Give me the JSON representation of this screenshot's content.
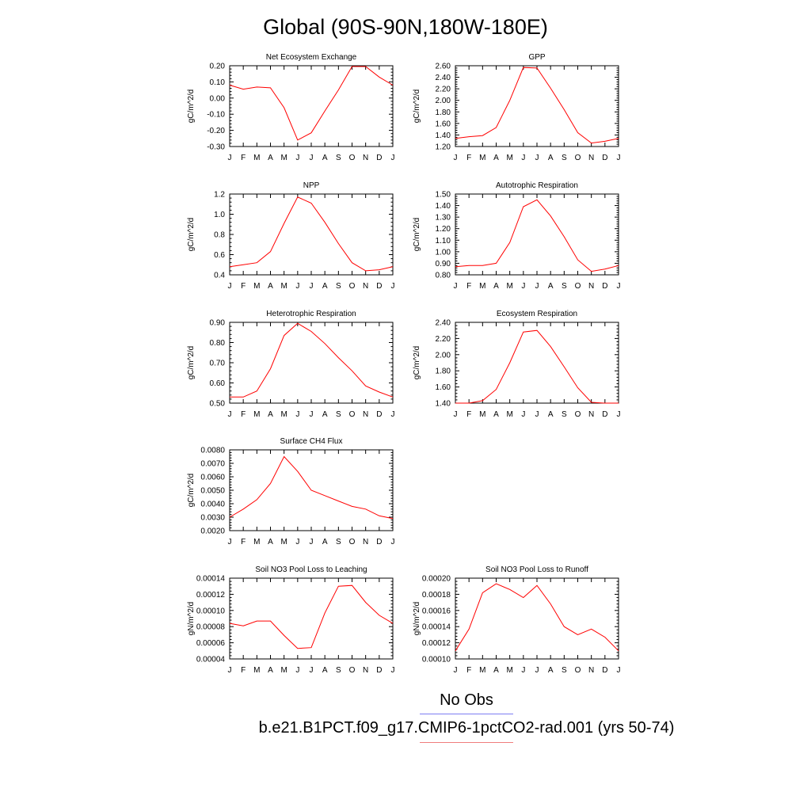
{
  "title": "Global (90S-90N,180W-180E)",
  "legend": {
    "obs_label": "No Obs",
    "case_label": "b.e21.B1PCT.f09_g17.CMIP6-1pctCO2-rad.001 (yrs 50-74)",
    "obs_color": "#7d7df2",
    "case_color": "#f07d7d"
  },
  "line_color": "#ff0000",
  "chart_data": [
    {
      "type": "line",
      "title": "Net Ecosystem Exchange",
      "ylabel": "gC/m^2/d",
      "categories": [
        "J",
        "F",
        "M",
        "A",
        "M",
        "J",
        "J",
        "A",
        "S",
        "O",
        "N",
        "D",
        "J"
      ],
      "values": [
        0.08,
        0.055,
        0.068,
        0.063,
        -0.06,
        -0.26,
        -0.215,
        -0.08,
        0.05,
        0.195,
        0.195,
        0.13,
        0.08
      ],
      "ylim": [
        -0.3,
        0.2
      ],
      "yticks": [
        -0.3,
        -0.2,
        -0.1,
        0.0,
        0.1,
        0.2
      ],
      "ytick_labels": [
        "-0.30",
        "-0.20",
        "-0.10",
        "0.00",
        "0.10",
        "0.20"
      ]
    },
    {
      "type": "line",
      "title": "GPP",
      "ylabel": "gC/m^2/d",
      "categories": [
        "J",
        "F",
        "M",
        "A",
        "M",
        "J",
        "J",
        "A",
        "S",
        "O",
        "N",
        "D",
        "J"
      ],
      "values": [
        1.34,
        1.37,
        1.39,
        1.53,
        2.0,
        2.57,
        2.56,
        2.21,
        1.84,
        1.44,
        1.26,
        1.29,
        1.34
      ],
      "ylim": [
        1.2,
        2.6
      ],
      "yticks": [
        1.2,
        1.4,
        1.6,
        1.8,
        2.0,
        2.2,
        2.4,
        2.6
      ],
      "ytick_labels": [
        "1.20",
        "1.40",
        "1.60",
        "1.80",
        "2.00",
        "2.20",
        "2.40",
        "2.60"
      ]
    },
    {
      "type": "line",
      "title": "NPP",
      "ylabel": "gC/m^2/d",
      "categories": [
        "J",
        "F",
        "M",
        "A",
        "M",
        "J",
        "J",
        "A",
        "S",
        "O",
        "N",
        "D",
        "J"
      ],
      "values": [
        0.48,
        0.5,
        0.52,
        0.63,
        0.91,
        1.17,
        1.11,
        0.92,
        0.71,
        0.52,
        0.44,
        0.45,
        0.48
      ],
      "ylim": [
        0.4,
        1.2
      ],
      "yticks": [
        0.4,
        0.6,
        0.8,
        1.0,
        1.2
      ],
      "ytick_labels": [
        "0.4",
        "0.6",
        "0.8",
        "1.0",
        "1.2"
      ]
    },
    {
      "type": "line",
      "title": "Autotrophic Respiration",
      "ylabel": "gC/m^2/d",
      "categories": [
        "J",
        "F",
        "M",
        "A",
        "M",
        "J",
        "J",
        "A",
        "S",
        "O",
        "N",
        "D",
        "J"
      ],
      "values": [
        0.87,
        0.88,
        0.88,
        0.9,
        1.08,
        1.39,
        1.45,
        1.31,
        1.13,
        0.93,
        0.83,
        0.85,
        0.88
      ],
      "ylim": [
        0.8,
        1.5
      ],
      "yticks": [
        0.8,
        0.9,
        1.0,
        1.1,
        1.2,
        1.3,
        1.4,
        1.5
      ],
      "ytick_labels": [
        "0.80",
        "0.90",
        "1.00",
        "1.10",
        "1.20",
        "1.30",
        "1.40",
        "1.50"
      ]
    },
    {
      "type": "line",
      "title": "Heterotrophic Respiration",
      "ylabel": "gC/m^2/d",
      "categories": [
        "J",
        "F",
        "M",
        "A",
        "M",
        "J",
        "J",
        "A",
        "S",
        "O",
        "N",
        "D",
        "J"
      ],
      "values": [
        0.53,
        0.53,
        0.56,
        0.67,
        0.835,
        0.895,
        0.855,
        0.795,
        0.725,
        0.66,
        0.585,
        0.555,
        0.53
      ],
      "ylim": [
        0.5,
        0.9
      ],
      "yticks": [
        0.5,
        0.6,
        0.7,
        0.8,
        0.9
      ],
      "ytick_labels": [
        "0.50",
        "0.60",
        "0.70",
        "0.80",
        "0.90"
      ]
    },
    {
      "type": "line",
      "title": "Ecosystem Respiration",
      "ylabel": "gC/m^2/d",
      "categories": [
        "J",
        "F",
        "M",
        "A",
        "M",
        "J",
        "J",
        "A",
        "S",
        "O",
        "N",
        "D",
        "J"
      ],
      "values": [
        1.4,
        1.4,
        1.43,
        1.57,
        1.9,
        2.28,
        2.3,
        2.1,
        1.85,
        1.59,
        1.41,
        1.4,
        1.4
      ],
      "ylim": [
        1.4,
        2.4
      ],
      "yticks": [
        1.4,
        1.6,
        1.8,
        2.0,
        2.2,
        2.4
      ],
      "ytick_labels": [
        "1.40",
        "1.60",
        "1.80",
        "2.00",
        "2.20",
        "2.40"
      ]
    },
    {
      "type": "line",
      "title": "Surface CH4 Flux",
      "ylabel": "gC/m^2/d",
      "categories": [
        "J",
        "F",
        "M",
        "A",
        "M",
        "J",
        "J",
        "A",
        "S",
        "O",
        "N",
        "D",
        "J"
      ],
      "values": [
        0.003,
        0.0036,
        0.0043,
        0.0055,
        0.0075,
        0.0064,
        0.005,
        0.0046,
        0.0042,
        0.0038,
        0.0036,
        0.0031,
        0.0029
      ],
      "ylim": [
        0.002,
        0.008
      ],
      "yticks": [
        0.002,
        0.003,
        0.004,
        0.005,
        0.006,
        0.007,
        0.008
      ],
      "ytick_labels": [
        "0.0020",
        "0.0030",
        "0.0040",
        "0.0050",
        "0.0060",
        "0.0070",
        "0.0080"
      ]
    },
    {
      "type": "line",
      "title": "Soil NO3 Pool Loss to Leaching",
      "ylabel": "gN/m^2/d",
      "categories": [
        "J",
        "F",
        "M",
        "A",
        "M",
        "J",
        "J",
        "A",
        "S",
        "O",
        "N",
        "D",
        "J"
      ],
      "values": [
        8.4e-05,
        8.1e-05,
        8.7e-05,
        8.7e-05,
        6.9e-05,
        5.3e-05,
        5.4e-05,
        9.7e-05,
        0.00013,
        0.000131,
        0.00011,
        9.4e-05,
        8.4e-05
      ],
      "ylim": [
        4e-05,
        0.00014
      ],
      "yticks": [
        4e-05,
        6e-05,
        8e-05,
        0.0001,
        0.00012,
        0.00014
      ],
      "ytick_labels": [
        "0.00004",
        "0.00006",
        "0.00008",
        "0.00010",
        "0.00012",
        "0.00014"
      ]
    },
    {
      "type": "line",
      "title": "Soil NO3 Pool Loss to Runoff",
      "ylabel": "gN/m^2/d",
      "categories": [
        "J",
        "F",
        "M",
        "A",
        "M",
        "J",
        "J",
        "A",
        "S",
        "O",
        "N",
        "D",
        "J"
      ],
      "values": [
        0.00011,
        0.000137,
        0.000182,
        0.000193,
        0.000186,
        0.000176,
        0.000191,
        0.000168,
        0.00014,
        0.00013,
        0.000137,
        0.000127,
        0.00011
      ],
      "ylim": [
        0.0001,
        0.0002
      ],
      "yticks": [
        0.0001,
        0.00012,
        0.00014,
        0.00016,
        0.00018,
        0.0002
      ],
      "ytick_labels": [
        "0.00010",
        "0.00012",
        "0.00014",
        "0.00016",
        "0.00018",
        "0.00020"
      ]
    }
  ]
}
